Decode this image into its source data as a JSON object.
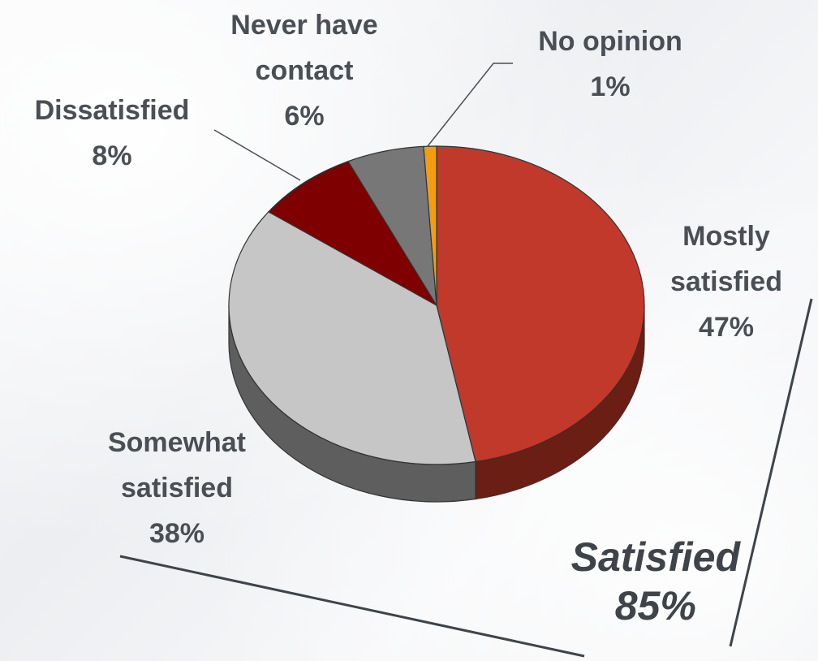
{
  "chart_data": {
    "type": "pie",
    "title": "",
    "slices": [
      {
        "label_lines": [
          "Mostly",
          "satisfied"
        ],
        "value_label": "47%",
        "value": 47,
        "color": "#c0392b",
        "side": "#6b1e14"
      },
      {
        "label_lines": [
          "Somewhat",
          "satisfied"
        ],
        "value_label": "38%",
        "value": 38,
        "color": "#c6c6c6",
        "side": "#5e5e5e"
      },
      {
        "label_lines": [
          "Dissatisfied"
        ],
        "value_label": "8%",
        "value": 8,
        "color": "#7f0000",
        "side": "#4a0000"
      },
      {
        "label_lines": [
          "Never have",
          "contact"
        ],
        "value_label": "6%",
        "value": 6,
        "color": "#777777",
        "side": "#444444"
      },
      {
        "label_lines": [
          "No opinion"
        ],
        "value_label": "1%",
        "value": 1,
        "color": "#f39c12",
        "side": "#a06000"
      }
    ]
  },
  "callout": {
    "label": "Satisfied",
    "value": "85%"
  },
  "colors": {
    "text": "#4a4f55",
    "callout_text": "#3e4449",
    "outline": "#333333"
  }
}
